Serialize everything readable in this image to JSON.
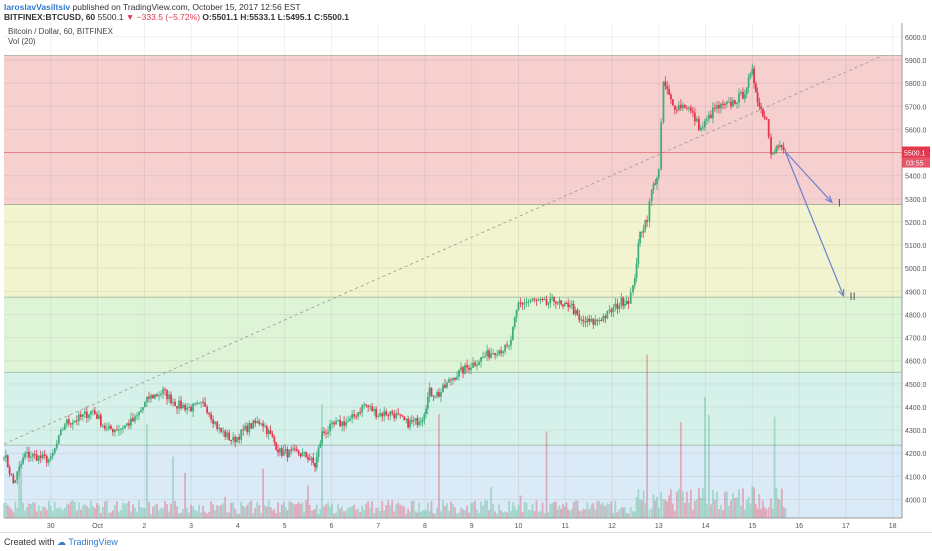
{
  "header": {
    "author": "IaroslavVasiltsiv",
    "published_text": "published on TradingView.com, October 15, 2017 12:56 EST",
    "symbol": "BITFINEX:BTCUSD, 60",
    "last": "5500.1",
    "change": "−333.5 (−5.72%)",
    "open": "O:5501.1",
    "high": "H:5533.1",
    "low": "L:5495.1",
    "close": "C:5500.1"
  },
  "chart_data": {
    "type": "candlestick",
    "title": "Bitcoin / Dollar, 60, BITFINEX",
    "indicator": "Vol (20)",
    "ylim": [
      3920,
      6060
    ],
    "xlim": [
      29.0,
      18.0
    ],
    "y_ticks": [
      4000,
      4100,
      4200,
      4300,
      4400,
      4500,
      4600,
      4700,
      4800,
      4900,
      5000,
      5100,
      5200,
      5300,
      5400,
      5500,
      5600,
      5700,
      5800,
      5900,
      6000
    ],
    "x_ticks": [
      {
        "label": "30",
        "t": 30
      },
      {
        "label": "Oct",
        "t": 31
      },
      {
        "label": "2",
        "t": 32
      },
      {
        "label": "3",
        "t": 33
      },
      {
        "label": "4",
        "t": 34
      },
      {
        "label": "5",
        "t": 35
      },
      {
        "label": "6",
        "t": 36
      },
      {
        "label": "7",
        "t": 37
      },
      {
        "label": "8",
        "t": 38
      },
      {
        "label": "9",
        "t": 39
      },
      {
        "label": "10",
        "t": 40
      },
      {
        "label": "11",
        "t": 41
      },
      {
        "label": "12",
        "t": 42
      },
      {
        "label": "13",
        "t": 43
      },
      {
        "label": "14",
        "t": 44
      },
      {
        "label": "15",
        "t": 45
      },
      {
        "label": "16",
        "t": 46
      },
      {
        "label": "17",
        "t": 47
      },
      {
        "label": "18",
        "t": 48
      }
    ],
    "zones": [
      {
        "from": 5275,
        "to": 5920,
        "color": "#f4c7c7"
      },
      {
        "from": 4875,
        "to": 5275,
        "color": "#eef2c6"
      },
      {
        "from": 4550,
        "to": 4875,
        "color": "#d8f2cf"
      },
      {
        "from": 4235,
        "to": 4550,
        "color": "#cfeee6"
      },
      {
        "from": 3920,
        "to": 4235,
        "color": "#d3e6f5"
      }
    ],
    "fib_lines": [
      5920,
      5275,
      4875,
      4550,
      4235
    ],
    "price_line": {
      "value": 5500.1,
      "label": "5500.1",
      "countdown": "03:55"
    },
    "trendline": {
      "from": [
        29.0,
        4240
      ],
      "to": [
        47.8,
        5920
      ]
    },
    "projections": [
      {
        "label": "I",
        "from": [
          45.7,
          5505
        ],
        "to": [
          46.7,
          5285
        ]
      },
      {
        "label": "II",
        "from": [
          45.7,
          5505
        ],
        "to": [
          46.95,
          4880
        ]
      }
    ],
    "price_path": [
      [
        29.0,
        4200
      ],
      [
        29.2,
        4070
      ],
      [
        29.45,
        4195
      ],
      [
        29.7,
        4185
      ],
      [
        30.0,
        4170
      ],
      [
        30.3,
        4330
      ],
      [
        30.6,
        4350
      ],
      [
        30.9,
        4385
      ],
      [
        31.2,
        4300
      ],
      [
        31.5,
        4310
      ],
      [
        31.8,
        4345
      ],
      [
        32.1,
        4440
      ],
      [
        32.4,
        4465
      ],
      [
        32.7,
        4410
      ],
      [
        33.0,
        4395
      ],
      [
        33.3,
        4410
      ],
      [
        33.6,
        4300
      ],
      [
        33.9,
        4255
      ],
      [
        34.2,
        4310
      ],
      [
        34.5,
        4340
      ],
      [
        34.7,
        4275
      ],
      [
        34.9,
        4205
      ],
      [
        35.1,
        4200
      ],
      [
        35.3,
        4200
      ],
      [
        35.5,
        4185
      ],
      [
        35.65,
        4145
      ],
      [
        35.8,
        4285
      ],
      [
        36.1,
        4325
      ],
      [
        36.4,
        4340
      ],
      [
        36.7,
        4410
      ],
      [
        37.0,
        4370
      ],
      [
        37.3,
        4375
      ],
      [
        37.6,
        4330
      ],
      [
        37.8,
        4335
      ],
      [
        37.95,
        4360
      ],
      [
        38.1,
        4465
      ],
      [
        38.3,
        4455
      ],
      [
        38.6,
        4530
      ],
      [
        38.9,
        4570
      ],
      [
        39.2,
        4610
      ],
      [
        39.5,
        4645
      ],
      [
        39.8,
        4655
      ],
      [
        40.0,
        4845
      ],
      [
        40.3,
        4860
      ],
      [
        40.6,
        4845
      ],
      [
        40.8,
        4865
      ],
      [
        40.95,
        4825
      ],
      [
        41.1,
        4850
      ],
      [
        41.3,
        4770
      ],
      [
        41.6,
        4765
      ],
      [
        41.9,
        4800
      ],
      [
        42.2,
        4855
      ],
      [
        42.35,
        4865
      ],
      [
        42.45,
        4910
      ],
      [
        42.6,
        5150
      ],
      [
        42.75,
        5220
      ],
      [
        42.85,
        5335
      ],
      [
        43.0,
        5420
      ],
      [
        43.1,
        5805
      ],
      [
        43.3,
        5700
      ],
      [
        43.6,
        5705
      ],
      [
        43.9,
        5600
      ],
      [
        44.2,
        5690
      ],
      [
        44.5,
        5705
      ],
      [
        44.8,
        5750
      ],
      [
        45.0,
        5845
      ],
      [
        45.15,
        5700
      ],
      [
        45.3,
        5645
      ],
      [
        45.4,
        5510
      ],
      [
        45.55,
        5525
      ],
      [
        45.75,
        5500
      ]
    ],
    "volume_scale": 100
  },
  "footer": {
    "created_with": "Created with",
    "brand": "TradingView"
  }
}
